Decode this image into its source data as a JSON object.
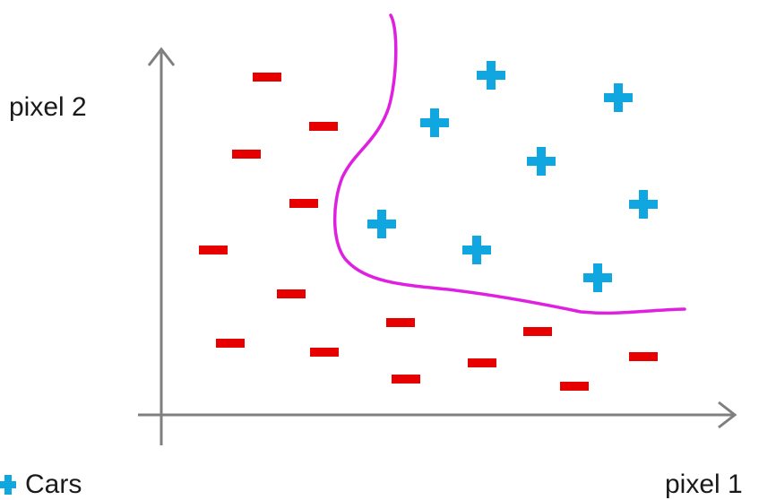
{
  "labels": {
    "y_axis": "pixel 2",
    "x_axis": "pixel 1",
    "legend_cars": "Cars"
  },
  "colors": {
    "axis": "#7f7f7f",
    "positive": "#10a7e0",
    "negative": "#e60000",
    "boundary": "#e020e0"
  },
  "icons": {
    "positive": "plus-icon",
    "negative": "minus-icon"
  }
}
